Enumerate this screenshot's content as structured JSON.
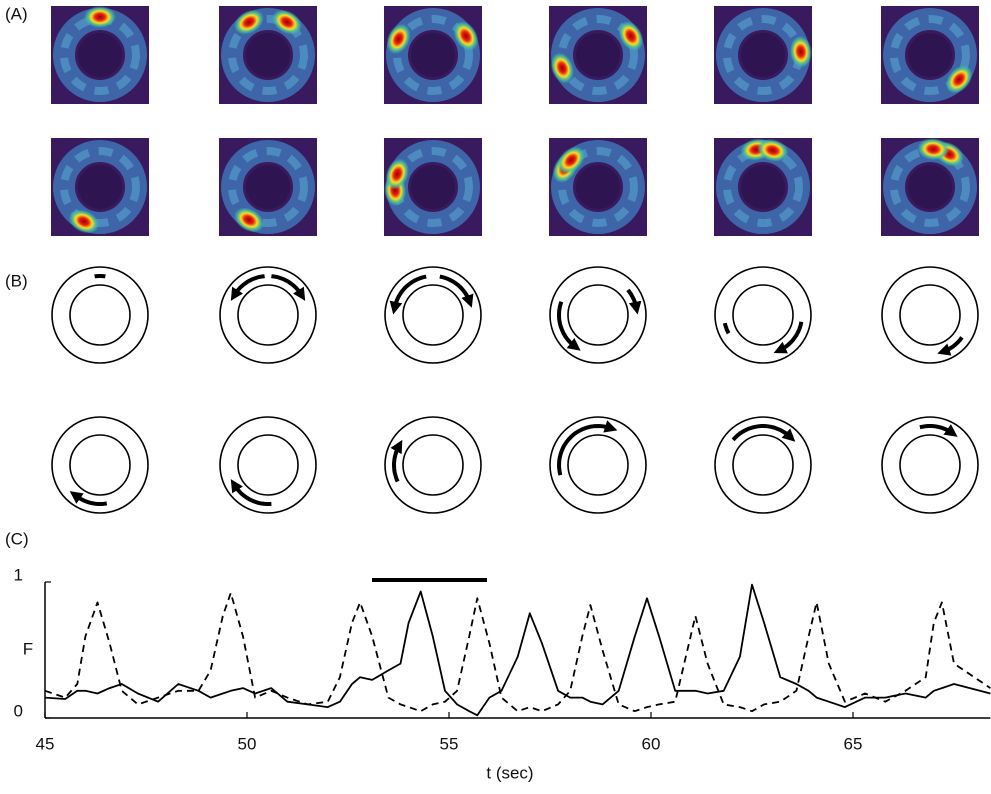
{
  "panel_labels": [
    "(A)",
    "(B)",
    "(C)"
  ],
  "chart_data": {
    "type": "line",
    "xlabel": "t (sec)",
    "ylabel": "F",
    "x": [
      45,
      45.5,
      45.8,
      46.0,
      46.3,
      46.6,
      46.9,
      47.3,
      47.8,
      48.3,
      48.8,
      49.1,
      49.4,
      49.6,
      49.9,
      50.2,
      50.6,
      51.0,
      51.5,
      52.0,
      52.3,
      52.6,
      52.8,
      53.1,
      53.5,
      53.8,
      54.0,
      54.3,
      54.6,
      54.9,
      55.2,
      55.5,
      55.7,
      56.0,
      56.3,
      56.7,
      57.0,
      57.3,
      57.7,
      58.0,
      58.3,
      58.5,
      58.8,
      59.2,
      59.6,
      59.9,
      60.2,
      60.6,
      60.9,
      61.1,
      61.4,
      61.8,
      62.2,
      62.5,
      62.8,
      63.2,
      63.6,
      63.9,
      64.1,
      64.4,
      64.8,
      65.3,
      65.8,
      66.3,
      66.8,
      67.0,
      67.2,
      67.5,
      68.4
    ],
    "series": [
      {
        "color": "#000000",
        "style": "solid",
        "values": [
          0.15,
          0.14,
          0.2,
          0.2,
          0.18,
          0.22,
          0.25,
          0.18,
          0.12,
          0.25,
          0.2,
          0.15,
          0.18,
          0.2,
          0.22,
          0.18,
          0.22,
          0.12,
          0.1,
          0.08,
          0.12,
          0.25,
          0.3,
          0.28,
          0.35,
          0.4,
          0.7,
          0.93,
          0.6,
          0.2,
          0.1,
          0.05,
          0.02,
          0.15,
          0.2,
          0.45,
          0.77,
          0.55,
          0.2,
          0.15,
          0.15,
          0.12,
          0.1,
          0.2,
          0.6,
          0.88,
          0.6,
          0.2,
          0.2,
          0.2,
          0.18,
          0.2,
          0.45,
          0.98,
          0.7,
          0.3,
          0.25,
          0.2,
          0.15,
          0.12,
          0.08,
          0.15,
          0.15,
          0.18,
          0.15,
          0.2,
          0.22,
          0.25,
          0.18
        ]
      },
      {
        "color": "#000000",
        "style": "dashed",
        "values": [
          0.2,
          0.15,
          0.25,
          0.6,
          0.85,
          0.55,
          0.2,
          0.1,
          0.15,
          0.2,
          0.2,
          0.35,
          0.75,
          0.92,
          0.6,
          0.15,
          0.2,
          0.15,
          0.1,
          0.12,
          0.3,
          0.7,
          0.85,
          0.6,
          0.15,
          0.1,
          0.08,
          0.05,
          0.1,
          0.12,
          0.2,
          0.6,
          0.88,
          0.55,
          0.15,
          0.05,
          0.08,
          0.05,
          0.1,
          0.2,
          0.6,
          0.83,
          0.5,
          0.1,
          0.05,
          0.08,
          0.1,
          0.12,
          0.5,
          0.75,
          0.4,
          0.1,
          0.08,
          0.05,
          0.1,
          0.12,
          0.2,
          0.6,
          0.85,
          0.4,
          0.12,
          0.18,
          0.12,
          0.2,
          0.3,
          0.7,
          0.85,
          0.4,
          0.22
        ]
      }
    ],
    "xlim": [
      45,
      68.4
    ],
    "ylim": [
      0,
      1
    ],
    "xticks": [
      45,
      50,
      55,
      60,
      65
    ],
    "yticks": [
      0,
      1
    ]
  }
}
